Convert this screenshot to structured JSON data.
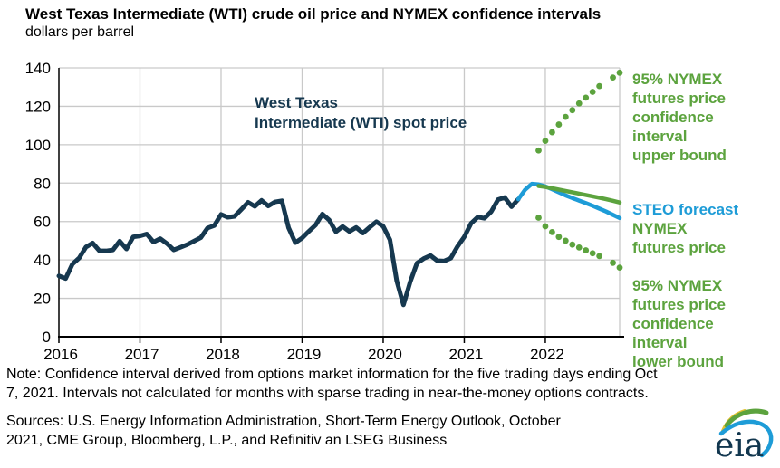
{
  "header": {
    "title": "West Texas Intermediate (WTI) crude oil price and NYMEX confidence intervals",
    "subtitle": "dollars per barrel"
  },
  "chart_data": {
    "type": "line",
    "title": "West Texas Intermediate (WTI) crude oil price and NYMEX confidence intervals",
    "ylabel": "dollars per barrel",
    "xlabel": "",
    "ylim": [
      0,
      140
    ],
    "y_ticks": [
      0,
      20,
      40,
      60,
      80,
      100,
      120,
      140
    ],
    "x_ticks": [
      2016,
      2017,
      2018,
      2019,
      2020,
      2021,
      2022
    ],
    "x_range": [
      2016,
      2022.9167
    ],
    "grid": true,
    "grid_color": "#c9c9c9",
    "axis_color": "#000000",
    "legend_position": "right",
    "series": [
      {
        "name": "West Texas Intermediate (WTI) spot price",
        "type": "line",
        "color": "#16384f",
        "width": 5,
        "x_start": 2016.0,
        "x_step": 0.0833333,
        "values": [
          31.7,
          30.3,
          37.8,
          41.0,
          46.7,
          48.8,
          44.7,
          44.7,
          45.2,
          49.8,
          45.7,
          52.0,
          52.5,
          53.5,
          49.3,
          51.1,
          48.5,
          45.2,
          46.6,
          48.0,
          49.8,
          51.6,
          56.6,
          57.9,
          63.7,
          62.2,
          62.7,
          66.3,
          70.0,
          67.9,
          71.0,
          68.1,
          70.2,
          70.8,
          56.7,
          49.0,
          51.4,
          54.9,
          58.2,
          63.9,
          60.8,
          54.7,
          57.4,
          54.8,
          56.9,
          54.0,
          57.0,
          59.9,
          57.5,
          50.5,
          29.2,
          16.6,
          28.6,
          38.3,
          40.7,
          42.3,
          39.6,
          39.4,
          40.9,
          47.0,
          52.0,
          59.0,
          62.3,
          61.7,
          65.2,
          71.4,
          72.5,
          67.7,
          71.6
        ]
      },
      {
        "name": "STEO forecast",
        "type": "line",
        "color": "#1e9cd7",
        "width": 4.5,
        "x_start": 2021.6667,
        "x_step": 0.0833333,
        "values": [
          71.6,
          76.5,
          79.6,
          79.3,
          78.3,
          76.8,
          75.2,
          73.6,
          72.2,
          70.9,
          69.6,
          68.2,
          66.7,
          65.2,
          63.5,
          61.8
        ]
      },
      {
        "name": "NYMEX futures price",
        "type": "line",
        "color": "#5ca33e",
        "width": 4.5,
        "x_start": 2021.9167,
        "x_step": 0.0833333,
        "values": [
          78.5,
          78.0,
          77.3,
          76.6,
          75.9,
          75.2,
          74.5,
          73.8,
          73.1,
          72.4,
          71.6,
          70.8,
          69.9
        ]
      },
      {
        "name": "95% NYMEX futures price confidence interval upper bound",
        "type": "dots",
        "color": "#5ca33e",
        "radius": 3.4,
        "x_start": 2021.9167,
        "x_step": 0.0833333,
        "values": [
          97,
          102,
          106.5,
          110.5,
          114.5,
          118,
          121.5,
          124.5,
          127.5,
          130.5,
          null,
          135,
          137.5
        ]
      },
      {
        "name": "95% NYMEX futures price confidence interval lower bound",
        "type": "dots",
        "color": "#5ca33e",
        "radius": 3.4,
        "x_start": 2021.9167,
        "x_step": 0.0833333,
        "values": [
          62,
          57.5,
          54.5,
          52,
          50,
          48,
          46.5,
          45,
          43.5,
          42,
          null,
          38.5,
          36
        ]
      }
    ]
  },
  "annotation": {
    "lines": [
      "West Texas",
      "Intermediate (WTI) spot price"
    ]
  },
  "legend": {
    "upper": [
      "95% NYMEX",
      "futures price",
      "confidence",
      "interval",
      "upper bound"
    ],
    "steo": "STEO forecast",
    "nymex": [
      "NYMEX",
      "futures price"
    ],
    "lower": [
      "95% NYMEX",
      "futures price",
      "confidence",
      "interval",
      "lower bound"
    ]
  },
  "footer": {
    "note_lines": [
      "Note: Confidence interval derived from options market information for the five trading days ending Oct",
      "7, 2021. Intervals not calculated for months with sparse trading in near-the-money options contracts."
    ],
    "sources_lines": [
      "Sources: U.S. Energy Information Administration,  Short-Term Energy Outlook,  October",
      "2021, CME Group, Bloomberg, L.P., and Refinitiv an LSEG Business"
    ],
    "logo_text": "eia"
  },
  "colors": {
    "spot_navy": "#16384f",
    "forecast_blue": "#1e9cd7",
    "futures_green": "#5ca33e",
    "logo_navy": "#12374f",
    "logo_yellow": "#e3c130"
  }
}
